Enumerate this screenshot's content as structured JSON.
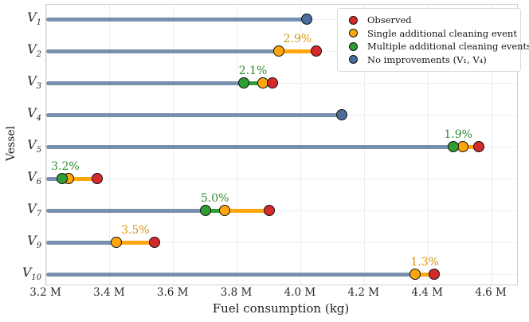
{
  "chart_data": {
    "type": "scatter",
    "variant": "horizontal-lollipop-dot-plot",
    "title": "",
    "xlabel": "Fuel consumption (kg)",
    "ylabel": "Vessel",
    "x_unit": "kg, values in millions",
    "xlim": [
      3.2,
      4.68
    ],
    "grid": true,
    "legend_position": "upper right",
    "xticks": [
      {
        "value": 3.2,
        "label": "3.2 M"
      },
      {
        "value": 3.4,
        "label": "3.4 M"
      },
      {
        "value": 3.6,
        "label": "3.6 M"
      },
      {
        "value": 3.8,
        "label": "3.8 M"
      },
      {
        "value": 4.0,
        "label": "4.0 M"
      },
      {
        "value": 4.2,
        "label": "4.2 M"
      },
      {
        "value": 4.4,
        "label": "4.4 M"
      },
      {
        "value": 4.6,
        "label": "4.6 M"
      }
    ],
    "rows": [
      {
        "vessel_base": "V",
        "vessel_sub": "1",
        "observed": 4.02,
        "single": null,
        "multiple": null,
        "no_improvement": true,
        "annotation": null
      },
      {
        "vessel_base": "V",
        "vessel_sub": "2",
        "observed": 4.05,
        "single": 3.93,
        "multiple": null,
        "no_improvement": false,
        "annotation": {
          "text": "2.9%",
          "type": "single"
        }
      },
      {
        "vessel_base": "V",
        "vessel_sub": "3",
        "observed": 3.91,
        "single": 3.88,
        "multiple": 3.82,
        "no_improvement": false,
        "annotation": {
          "text": "2.1%",
          "type": "multiple"
        }
      },
      {
        "vessel_base": "V",
        "vessel_sub": "4",
        "observed": 4.13,
        "single": null,
        "multiple": null,
        "no_improvement": true,
        "annotation": null
      },
      {
        "vessel_base": "V",
        "vessel_sub": "5",
        "observed": 4.56,
        "single": 4.51,
        "multiple": 4.48,
        "no_improvement": false,
        "annotation": {
          "text": "1.9%",
          "type": "multiple"
        }
      },
      {
        "vessel_base": "V",
        "vessel_sub": "6",
        "observed": 3.36,
        "single": 3.27,
        "multiple": 3.25,
        "no_improvement": false,
        "annotation": {
          "text": "3.2%",
          "type": "multiple"
        }
      },
      {
        "vessel_base": "V",
        "vessel_sub": "7",
        "observed": 3.9,
        "single": 3.76,
        "multiple": 3.7,
        "no_improvement": false,
        "annotation": {
          "text": "5.0%",
          "type": "multiple"
        }
      },
      {
        "vessel_base": "V",
        "vessel_sub": "9",
        "observed": 3.54,
        "single": 3.42,
        "multiple": null,
        "no_improvement": false,
        "annotation": {
          "text": "3.5%",
          "type": "single"
        }
      },
      {
        "vessel_base": "V",
        "vessel_sub": "10",
        "observed": 4.42,
        "single": 4.36,
        "multiple": null,
        "no_improvement": false,
        "annotation": {
          "text": "1.3%",
          "type": "single"
        }
      }
    ],
    "colors": {
      "observed": "#d42a2b",
      "single": "#ffa60d",
      "multiple": "#2f9e33",
      "none": "#4a6d9b",
      "baseline": "#7890b0",
      "annotation_single": "#d8950f",
      "annotation_multiple": "#2e8b2f"
    },
    "legend": {
      "items": [
        {
          "label": "Observed",
          "color": "#d42a2b"
        },
        {
          "label": "Single additional cleaning event",
          "color": "#ffa60d"
        },
        {
          "label": "Multiple additional cleaning events",
          "color": "#2f9e33"
        },
        {
          "label": "No improvements (V₁, V₄)",
          "color": "#4a6d9b"
        }
      ]
    }
  }
}
